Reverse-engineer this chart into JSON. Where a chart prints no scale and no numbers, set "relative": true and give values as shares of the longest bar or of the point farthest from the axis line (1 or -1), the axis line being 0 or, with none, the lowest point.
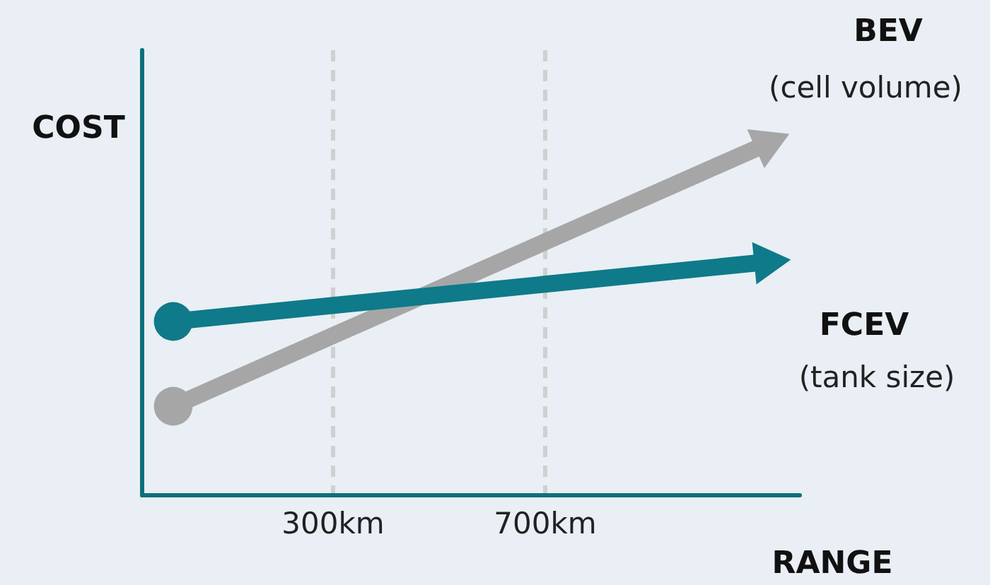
{
  "chart_data": {
    "type": "line",
    "relative": true,
    "xlabel": "RANGE",
    "ylabel": "COST",
    "x": [
      0,
      1130
    ],
    "xlim": [
      -60,
      1180
    ],
    "xticks": [
      {
        "value": 300,
        "label": "300km"
      },
      {
        "value": 700,
        "label": "700km"
      }
    ],
    "series": [
      {
        "name": "BEV",
        "color": "#a6a6a6",
        "values": [
          0.25,
          1
        ]
      },
      {
        "name": "FCEV",
        "color": "#0e7a8a",
        "values": [
          0.49,
          0.66
        ]
      }
    ],
    "annotations": [
      "(cell volume)",
      "(tank size)"
    ],
    "grid": "x",
    "marker": "circle",
    "line_style": "solid",
    "tick_labels": "x",
    "legend": false
  }
}
